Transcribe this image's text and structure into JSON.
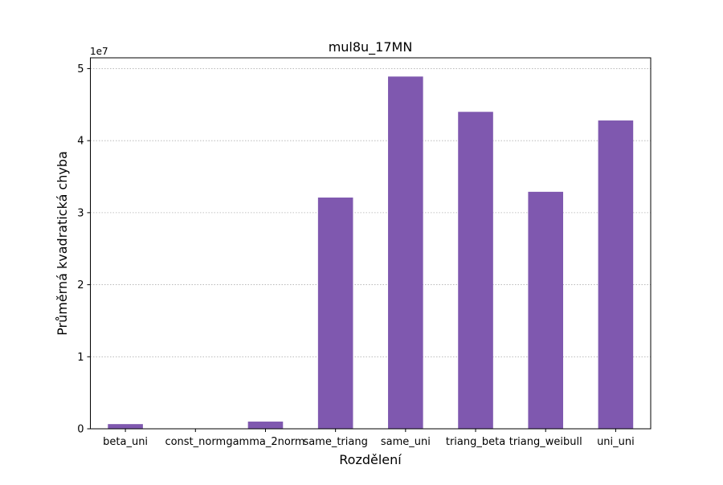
{
  "chart_data": {
    "type": "bar",
    "title": "mul8u_17MN",
    "xlabel": "Rozdělení",
    "ylabel": "Průměrná kvadratická chyba",
    "y_multiplier_label": "1e7",
    "categories": [
      "beta_uni",
      "const_norm",
      "gamma_2norm",
      "same_triang",
      "same_uni",
      "triang_beta",
      "triang_weibull",
      "uni_uni"
    ],
    "values": [
      650000,
      0,
      1000000,
      32100000,
      48900000,
      44000000,
      32900000,
      42800000
    ],
    "ylim": [
      0,
      51500000
    ],
    "yticks": [
      0,
      10000000,
      20000000,
      30000000,
      40000000,
      50000000
    ],
    "ytick_labels": [
      "0",
      "1",
      "2",
      "3",
      "4",
      "5"
    ],
    "grid": "y-dotted",
    "bar_color": "#7f58af"
  }
}
